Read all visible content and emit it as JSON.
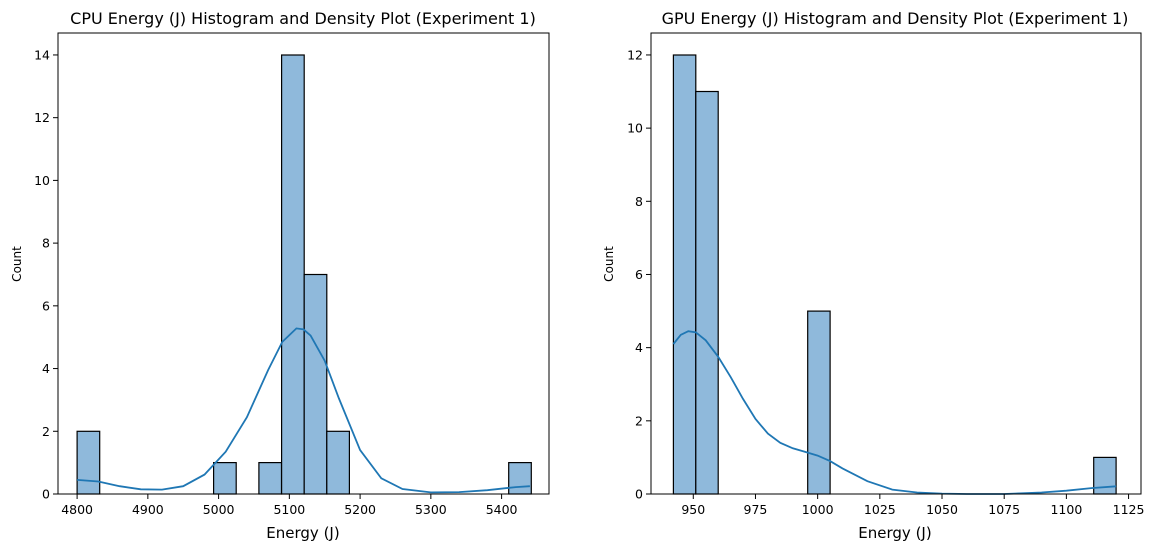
{
  "chart_data": [
    {
      "type": "bar",
      "title": "CPU Energy (J) Histogram and Density Plot (Experiment 1)",
      "xlabel": "Energy (J)",
      "ylabel": "Count",
      "xlim": [
        4773,
        5467
      ],
      "ylim": [
        0,
        14.7
      ],
      "xticks": [
        4800,
        4900,
        5000,
        5100,
        5200,
        5300,
        5400
      ],
      "yticks": [
        0,
        2,
        4,
        6,
        8,
        10,
        12,
        14
      ],
      "bins": [
        {
          "x0": 4800,
          "x1": 4832,
          "count": 2
        },
        {
          "x0": 4993,
          "x1": 5025,
          "count": 1
        },
        {
          "x0": 5057,
          "x1": 5089,
          "count": 1
        },
        {
          "x0": 5089,
          "x1": 5121,
          "count": 14
        },
        {
          "x0": 5121,
          "x1": 5153,
          "count": 7
        },
        {
          "x0": 5153,
          "x1": 5185,
          "count": 2
        },
        {
          "x0": 5410,
          "x1": 5442,
          "count": 1
        }
      ],
      "kde": {
        "x": [
          4800,
          4830,
          4860,
          4890,
          4920,
          4950,
          4980,
          5010,
          5040,
          5070,
          5090,
          5110,
          5120,
          5130,
          5150,
          5170,
          5200,
          5230,
          5260,
          5300,
          5340,
          5380,
          5420,
          5440
        ],
        "y": [
          0.45,
          0.4,
          0.25,
          0.15,
          0.14,
          0.25,
          0.62,
          1.35,
          2.45,
          3.95,
          4.85,
          5.28,
          5.25,
          5.05,
          4.25,
          3.05,
          1.4,
          0.5,
          0.16,
          0.05,
          0.06,
          0.12,
          0.22,
          0.25
        ]
      },
      "grid": false,
      "colors": {
        "bar": "#8fb9db",
        "line": "#1f77b4"
      }
    },
    {
      "type": "bar",
      "title": "GPU Energy (J) Histogram and Density Plot (Experiment 1)",
      "xlabel": "Energy (J)",
      "ylabel": "Count",
      "xlim": [
        933,
        1130
      ],
      "ylim": [
        0,
        12.6
      ],
      "xticks": [
        950,
        975,
        1000,
        1025,
        1050,
        1075,
        1100,
        1125
      ],
      "yticks": [
        0,
        2,
        4,
        6,
        8,
        10,
        12
      ],
      "bins": [
        {
          "x0": 942,
          "x1": 951,
          "count": 12
        },
        {
          "x0": 951,
          "x1": 960,
          "count": 11
        },
        {
          "x0": 996,
          "x1": 1005,
          "count": 5
        },
        {
          "x0": 1111,
          "x1": 1120,
          "count": 1
        }
      ],
      "kde": {
        "x": [
          942,
          945,
          948,
          951,
          955,
          960,
          965,
          970,
          975,
          980,
          985,
          990,
          995,
          1000,
          1005,
          1010,
          1020,
          1030,
          1040,
          1050,
          1060,
          1075,
          1090,
          1100,
          1110,
          1120
        ],
        "y": [
          4.1,
          4.35,
          4.45,
          4.42,
          4.2,
          3.75,
          3.2,
          2.6,
          2.05,
          1.65,
          1.4,
          1.25,
          1.15,
          1.05,
          0.9,
          0.7,
          0.35,
          0.12,
          0.04,
          0.01,
          0.0,
          0.0,
          0.04,
          0.09,
          0.16,
          0.21
        ]
      },
      "grid": false,
      "colors": {
        "bar": "#8fb9db",
        "line": "#1f77b4"
      }
    }
  ]
}
